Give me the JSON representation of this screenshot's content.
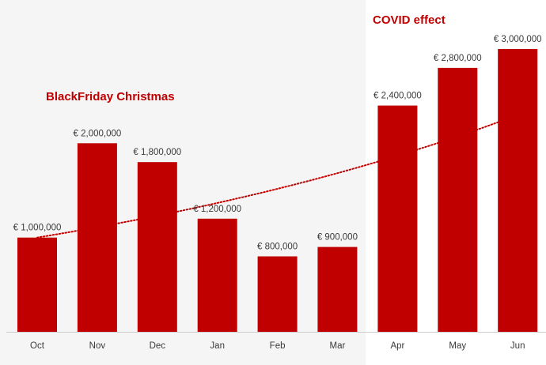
{
  "chart_data": {
    "type": "bar",
    "title": "",
    "xlabel": "",
    "ylabel": "",
    "categories": [
      "Oct",
      "Nov",
      "Dec",
      "Jan",
      "Feb",
      "Mar",
      "Apr",
      "May",
      "Jun"
    ],
    "values": [
      1000000,
      2000000,
      1800000,
      1200000,
      800000,
      900000,
      2400000,
      2800000,
      3000000
    ],
    "value_labels": [
      "€ 1,000,000",
      "€ 2,000,000",
      "€ 1,800,000",
      "€ 1,200,000",
      "€ 800,000",
      "€ 900,000",
      "€ 2,400,000",
      "€ 2,800,000",
      "€ 3,000,000"
    ],
    "ylim": [
      0,
      3000000
    ],
    "grid": false,
    "trendline": {
      "type": "exponential",
      "style": "dotted",
      "start_value": 1000000,
      "end_value": 2300000
    },
    "highlighted_categories": [
      "Apr",
      "May",
      "Jun"
    ],
    "annotations": [
      {
        "text": "BlackFriday Christmas",
        "near": "Nov"
      },
      {
        "text": "COVID effect",
        "near": "Apr"
      }
    ],
    "colors": {
      "bar": "#c00000",
      "annotation": "#c00000",
      "trend": "#c00000",
      "background_left": "#f5f5f5",
      "background_right": "#ffffff",
      "axis": "#cccccc"
    }
  }
}
